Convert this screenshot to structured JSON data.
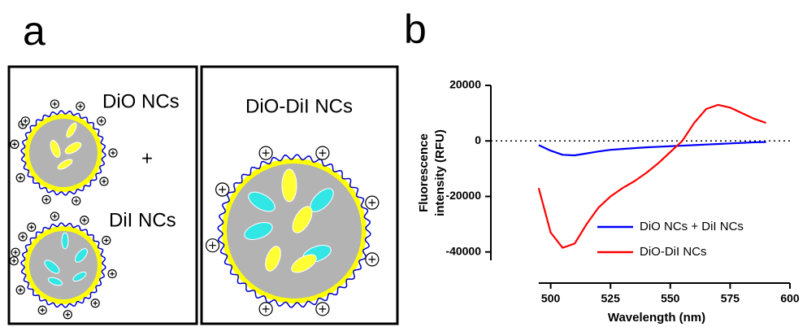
{
  "panels": {
    "a": "a",
    "b": "b"
  },
  "diagram": {
    "top_left": "DiO NCs",
    "plus": "+",
    "bottom_left": "DiI NCs",
    "right": "DiO-DiI NCs"
  },
  "chart_data": {
    "type": "line",
    "xlabel": "Wavelength (nm)",
    "ylabel": [
      "Fluorescence",
      "intensity (RFU)"
    ],
    "x": [
      495,
      500,
      505,
      510,
      515,
      520,
      525,
      530,
      535,
      540,
      545,
      550,
      555,
      560,
      565,
      570,
      575,
      580,
      585,
      590
    ],
    "series": [
      {
        "name": "DiO NCs + DiI NCs",
        "color": "#0000ff",
        "values": [
          -1500,
          -3500,
          -5000,
          -5200,
          -4500,
          -3800,
          -3200,
          -2900,
          -2600,
          -2300,
          -2100,
          -1900,
          -1700,
          -1500,
          -1300,
          -1100,
          -900,
          -700,
          -500,
          -400
        ]
      },
      {
        "name": "DiO-DiI NCs",
        "color": "#ff0000",
        "values": [
          -17000,
          -33000,
          -38500,
          -37000,
          -30000,
          -24000,
          -20000,
          -17000,
          -14500,
          -11500,
          -8000,
          -4000,
          0,
          6500,
          11500,
          13000,
          12000,
          10000,
          8000,
          6500
        ]
      }
    ],
    "xlim": [
      475,
      600
    ],
    "xticks": [
      500,
      525,
      550,
      575,
      600
    ],
    "ylim": [
      -43000,
      20000
    ],
    "yticks": [
      20000,
      0,
      -20000,
      -40000
    ],
    "legend": "lower right"
  }
}
